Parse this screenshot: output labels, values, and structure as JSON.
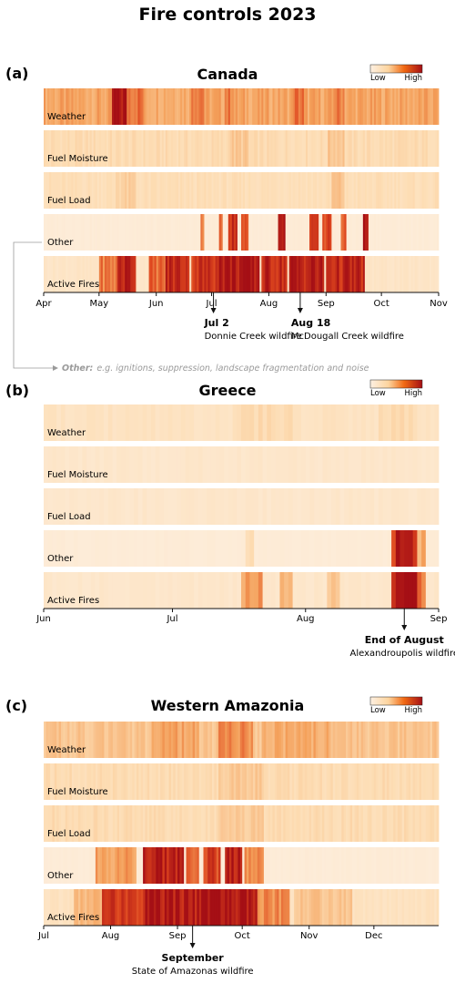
{
  "title": "Fire controls 2023",
  "legend": {
    "low": "Low",
    "high": "High"
  },
  "colors": {
    "low": "#fdf0e2",
    "high": "#a50f15",
    "note": "#9a9a9a"
  },
  "footnote": {
    "bold": "Other:",
    "text": "e.g. ignitions, suppression, landscape fragmentation and noise"
  },
  "chart_data": [
    {
      "type": "heatmap",
      "panel": "(a)",
      "title": "Canada",
      "rows": [
        "Weather",
        "Fuel Moisture",
        "Fuel Load",
        "Other",
        "Active Fires"
      ],
      "x_ticks": [
        "Apr",
        "May",
        "Jun",
        "Jul",
        "Aug",
        "Sep",
        "Oct",
        "Nov"
      ],
      "x_range": [
        "2023-04-01",
        "2023-11-01"
      ],
      "intensity": [
        {
          "row": "Weather",
          "base": 0.42,
          "peaks": [
            {
              "from": "2023-05-08",
              "to": "2023-05-15",
              "value": 0.95
            },
            {
              "from": "2023-05-16",
              "to": "2023-05-24",
              "value": 0.6
            },
            {
              "from": "2023-06-20",
              "to": "2023-06-26",
              "value": 0.6
            },
            {
              "from": "2023-07-08",
              "to": "2023-07-12",
              "value": 0.55
            },
            {
              "from": "2023-08-14",
              "to": "2023-08-19",
              "value": 0.58
            },
            {
              "from": "2023-09-05",
              "to": "2023-09-10",
              "value": 0.55
            }
          ]
        },
        {
          "row": "Fuel Moisture",
          "base": 0.2,
          "peaks": [
            {
              "from": "2023-07-10",
              "to": "2023-07-20",
              "value": 0.28
            },
            {
              "from": "2023-09-02",
              "to": "2023-09-10",
              "value": 0.3
            }
          ]
        },
        {
          "row": "Fuel Load",
          "base": 0.18,
          "peaks": [
            {
              "from": "2023-05-10",
              "to": "2023-05-20",
              "value": 0.25
            },
            {
              "from": "2023-09-04",
              "to": "2023-09-10",
              "value": 0.3
            }
          ]
        },
        {
          "row": "Other",
          "base": 0.05,
          "peaks": [
            {
              "from": "2023-06-25",
              "to": "2023-06-26",
              "value": 0.5
            },
            {
              "from": "2023-07-05",
              "to": "2023-07-06",
              "value": 0.55
            },
            {
              "from": "2023-07-10",
              "to": "2023-07-14",
              "value": 0.8
            },
            {
              "from": "2023-07-17",
              "to": "2023-07-20",
              "value": 0.7
            },
            {
              "from": "2023-08-06",
              "to": "2023-08-09",
              "value": 0.85
            },
            {
              "from": "2023-08-23",
              "to": "2023-08-27",
              "value": 0.7
            },
            {
              "from": "2023-08-30",
              "to": "2023-09-03",
              "value": 0.75
            },
            {
              "from": "2023-09-09",
              "to": "2023-09-11",
              "value": 0.6
            },
            {
              "from": "2023-09-21",
              "to": "2023-09-23",
              "value": 0.95
            }
          ]
        },
        {
          "row": "Active Fires",
          "base": 0.12,
          "peaks": [
            {
              "from": "2023-05-01",
              "to": "2023-05-10",
              "value": 0.55
            },
            {
              "from": "2023-05-11",
              "to": "2023-05-20",
              "value": 0.9
            },
            {
              "from": "2023-05-28",
              "to": "2023-06-05",
              "value": 0.6
            },
            {
              "from": "2023-06-06",
              "to": "2023-06-18",
              "value": 0.85
            },
            {
              "from": "2023-06-20",
              "to": "2023-07-02",
              "value": 0.8
            },
            {
              "from": "2023-07-03",
              "to": "2023-07-26",
              "value": 0.95
            },
            {
              "from": "2023-07-28",
              "to": "2023-08-10",
              "value": 0.85
            },
            {
              "from": "2023-08-12",
              "to": "2023-08-30",
              "value": 0.9
            },
            {
              "from": "2023-09-01",
              "to": "2023-09-21",
              "value": 0.85
            }
          ]
        }
      ],
      "annotations": [
        {
          "date": "2023-07-02",
          "bold": "Jul 2",
          "text": "Donnie Creek wildfire"
        },
        {
          "date": "2023-08-18",
          "bold": "Aug 18",
          "text": "McDougall Creek wildfire"
        }
      ]
    },
    {
      "type": "heatmap",
      "panel": "(b)",
      "title": "Greece",
      "rows": [
        "Weather",
        "Fuel Moisture",
        "Fuel Load",
        "Other",
        "Active Fires"
      ],
      "x_ticks": [
        "Jun",
        "Jul",
        "Aug",
        "Sep"
      ],
      "x_range": [
        "2023-06-01",
        "2023-09-01"
      ],
      "intensity": [
        {
          "row": "Weather",
          "base": 0.14,
          "peaks": [
            {
              "from": "2023-07-15",
              "to": "2023-07-28",
              "value": 0.2
            },
            {
              "from": "2023-08-18",
              "to": "2023-08-26",
              "value": 0.2
            }
          ]
        },
        {
          "row": "Fuel Moisture",
          "base": 0.1,
          "peaks": []
        },
        {
          "row": "Fuel Load",
          "base": 0.1,
          "peaks": []
        },
        {
          "row": "Other",
          "base": 0.05,
          "peaks": [
            {
              "from": "2023-07-18",
              "to": "2023-07-19",
              "value": 0.2
            },
            {
              "from": "2023-08-21",
              "to": "2023-08-22",
              "value": 0.7
            },
            {
              "from": "2023-08-22",
              "to": "2023-08-25",
              "value": 1.0
            },
            {
              "from": "2023-08-25",
              "to": "2023-08-26",
              "value": 0.7
            },
            {
              "from": "2023-08-27",
              "to": "2023-08-28",
              "value": 0.4
            }
          ]
        },
        {
          "row": "Active Fires",
          "base": 0.1,
          "peaks": [
            {
              "from": "2023-07-17",
              "to": "2023-07-21",
              "value": 0.45
            },
            {
              "from": "2023-07-26",
              "to": "2023-07-28",
              "value": 0.35
            },
            {
              "from": "2023-08-06",
              "to": "2023-08-08",
              "value": 0.3
            },
            {
              "from": "2023-08-21",
              "to": "2023-08-22",
              "value": 0.7
            },
            {
              "from": "2023-08-22",
              "to": "2023-08-26",
              "value": 1.0
            },
            {
              "from": "2023-08-26",
              "to": "2023-08-28",
              "value": 0.55
            }
          ]
        }
      ],
      "annotations": [
        {
          "date": "2023-08-24",
          "bold": "End of August",
          "text": "Alexandroupolis wildfire"
        }
      ]
    },
    {
      "type": "heatmap",
      "panel": "(c)",
      "title": "Western Amazonia",
      "rows": [
        "Weather",
        "Fuel Moisture",
        "Fuel Load",
        "Other",
        "Active Fires"
      ],
      "x_ticks": [
        "Jul",
        "Aug",
        "Sep",
        "Oct",
        "Nov",
        "Dec"
      ],
      "x_range": [
        "2023-07-01",
        "2023-12-31"
      ],
      "intensity": [
        {
          "row": "Weather",
          "base": 0.3,
          "peaks": [
            {
              "from": "2023-08-20",
              "to": "2023-09-10",
              "value": 0.42
            },
            {
              "from": "2023-09-20",
              "to": "2023-10-05",
              "value": 0.5
            },
            {
              "from": "2023-10-10",
              "to": "2023-11-10",
              "value": 0.4
            }
          ]
        },
        {
          "row": "Fuel Moisture",
          "base": 0.2,
          "peaks": [
            {
              "from": "2023-09-20",
              "to": "2023-10-10",
              "value": 0.28
            }
          ]
        },
        {
          "row": "Fuel Load",
          "base": 0.2,
          "peaks": [
            {
              "from": "2023-09-20",
              "to": "2023-10-10",
              "value": 0.28
            }
          ]
        },
        {
          "row": "Other",
          "base": 0.05,
          "peaks": [
            {
              "from": "2023-07-25",
              "to": "2023-08-12",
              "value": 0.45
            },
            {
              "from": "2023-08-16",
              "to": "2023-09-03",
              "value": 0.9
            },
            {
              "from": "2023-09-05",
              "to": "2023-09-10",
              "value": 0.55
            },
            {
              "from": "2023-09-13",
              "to": "2023-09-20",
              "value": 0.75
            },
            {
              "from": "2023-09-23",
              "to": "2023-09-30",
              "value": 0.95
            },
            {
              "from": "2023-10-02",
              "to": "2023-10-10",
              "value": 0.5
            }
          ]
        },
        {
          "row": "Active Fires",
          "base": 0.15,
          "peaks": [
            {
              "from": "2023-07-15",
              "to": "2023-07-28",
              "value": 0.35
            },
            {
              "from": "2023-07-28",
              "to": "2023-08-16",
              "value": 0.75
            },
            {
              "from": "2023-08-16",
              "to": "2023-10-07",
              "value": 0.95
            },
            {
              "from": "2023-10-07",
              "to": "2023-10-22",
              "value": 0.5
            },
            {
              "from": "2023-10-25",
              "to": "2023-11-20",
              "value": 0.3
            }
          ]
        }
      ],
      "annotations": [
        {
          "date": "2023-09-08",
          "bold": "September",
          "text": "State of Amazonas wildfire"
        }
      ]
    }
  ]
}
